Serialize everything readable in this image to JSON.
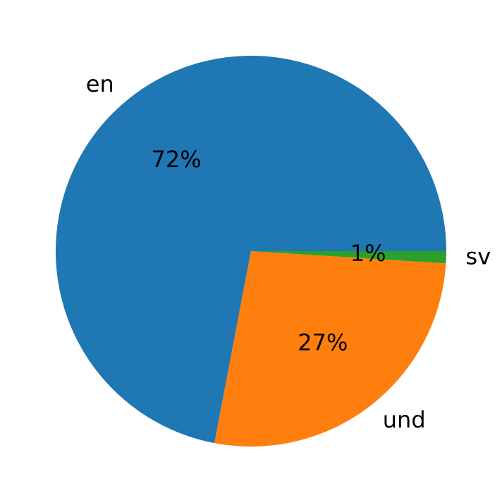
{
  "chart_data": {
    "type": "pie",
    "categories": [
      "en",
      "und",
      "sv"
    ],
    "values": [
      72,
      27,
      1
    ],
    "value_labels": [
      "72%",
      "27%",
      "1%"
    ],
    "colors": [
      "#1f77b4",
      "#ff7f0e",
      "#2ca02c"
    ]
  }
}
